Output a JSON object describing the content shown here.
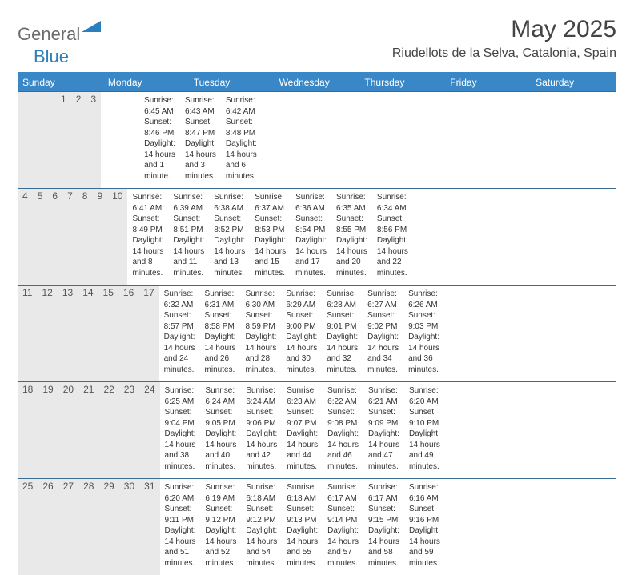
{
  "logo": {
    "text_general": "General",
    "text_blue": "Blue"
  },
  "title": "May 2025",
  "location": "Riudellots de la Selva, Catalonia, Spain",
  "colors": {
    "header_bg": "#3a87c7",
    "header_text": "#ffffff",
    "daynum_bg": "#e9e9e9",
    "border": "#3a6b93",
    "text": "#333333",
    "logo_gray": "#6b6b6b",
    "logo_blue": "#2b7fbd"
  },
  "day_labels": [
    "Sunday",
    "Monday",
    "Tuesday",
    "Wednesday",
    "Thursday",
    "Friday",
    "Saturday"
  ],
  "weeks": [
    [
      {
        "num": "",
        "info": ""
      },
      {
        "num": "",
        "info": ""
      },
      {
        "num": "",
        "info": ""
      },
      {
        "num": "",
        "info": ""
      },
      {
        "num": "1",
        "info": "Sunrise: 6:45 AM\nSunset: 8:46 PM\nDaylight: 14 hours and 1 minute."
      },
      {
        "num": "2",
        "info": "Sunrise: 6:43 AM\nSunset: 8:47 PM\nDaylight: 14 hours and 3 minutes."
      },
      {
        "num": "3",
        "info": "Sunrise: 6:42 AM\nSunset: 8:48 PM\nDaylight: 14 hours and 6 minutes."
      }
    ],
    [
      {
        "num": "4",
        "info": "Sunrise: 6:41 AM\nSunset: 8:49 PM\nDaylight: 14 hours and 8 minutes."
      },
      {
        "num": "5",
        "info": "Sunrise: 6:39 AM\nSunset: 8:51 PM\nDaylight: 14 hours and 11 minutes."
      },
      {
        "num": "6",
        "info": "Sunrise: 6:38 AM\nSunset: 8:52 PM\nDaylight: 14 hours and 13 minutes."
      },
      {
        "num": "7",
        "info": "Sunrise: 6:37 AM\nSunset: 8:53 PM\nDaylight: 14 hours and 15 minutes."
      },
      {
        "num": "8",
        "info": "Sunrise: 6:36 AM\nSunset: 8:54 PM\nDaylight: 14 hours and 17 minutes."
      },
      {
        "num": "9",
        "info": "Sunrise: 6:35 AM\nSunset: 8:55 PM\nDaylight: 14 hours and 20 minutes."
      },
      {
        "num": "10",
        "info": "Sunrise: 6:34 AM\nSunset: 8:56 PM\nDaylight: 14 hours and 22 minutes."
      }
    ],
    [
      {
        "num": "11",
        "info": "Sunrise: 6:32 AM\nSunset: 8:57 PM\nDaylight: 14 hours and 24 minutes."
      },
      {
        "num": "12",
        "info": "Sunrise: 6:31 AM\nSunset: 8:58 PM\nDaylight: 14 hours and 26 minutes."
      },
      {
        "num": "13",
        "info": "Sunrise: 6:30 AM\nSunset: 8:59 PM\nDaylight: 14 hours and 28 minutes."
      },
      {
        "num": "14",
        "info": "Sunrise: 6:29 AM\nSunset: 9:00 PM\nDaylight: 14 hours and 30 minutes."
      },
      {
        "num": "15",
        "info": "Sunrise: 6:28 AM\nSunset: 9:01 PM\nDaylight: 14 hours and 32 minutes."
      },
      {
        "num": "16",
        "info": "Sunrise: 6:27 AM\nSunset: 9:02 PM\nDaylight: 14 hours and 34 minutes."
      },
      {
        "num": "17",
        "info": "Sunrise: 6:26 AM\nSunset: 9:03 PM\nDaylight: 14 hours and 36 minutes."
      }
    ],
    [
      {
        "num": "18",
        "info": "Sunrise: 6:25 AM\nSunset: 9:04 PM\nDaylight: 14 hours and 38 minutes."
      },
      {
        "num": "19",
        "info": "Sunrise: 6:24 AM\nSunset: 9:05 PM\nDaylight: 14 hours and 40 minutes."
      },
      {
        "num": "20",
        "info": "Sunrise: 6:24 AM\nSunset: 9:06 PM\nDaylight: 14 hours and 42 minutes."
      },
      {
        "num": "21",
        "info": "Sunrise: 6:23 AM\nSunset: 9:07 PM\nDaylight: 14 hours and 44 minutes."
      },
      {
        "num": "22",
        "info": "Sunrise: 6:22 AM\nSunset: 9:08 PM\nDaylight: 14 hours and 46 minutes."
      },
      {
        "num": "23",
        "info": "Sunrise: 6:21 AM\nSunset: 9:09 PM\nDaylight: 14 hours and 47 minutes."
      },
      {
        "num": "24",
        "info": "Sunrise: 6:20 AM\nSunset: 9:10 PM\nDaylight: 14 hours and 49 minutes."
      }
    ],
    [
      {
        "num": "25",
        "info": "Sunrise: 6:20 AM\nSunset: 9:11 PM\nDaylight: 14 hours and 51 minutes."
      },
      {
        "num": "26",
        "info": "Sunrise: 6:19 AM\nSunset: 9:12 PM\nDaylight: 14 hours and 52 minutes."
      },
      {
        "num": "27",
        "info": "Sunrise: 6:18 AM\nSunset: 9:12 PM\nDaylight: 14 hours and 54 minutes."
      },
      {
        "num": "28",
        "info": "Sunrise: 6:18 AM\nSunset: 9:13 PM\nDaylight: 14 hours and 55 minutes."
      },
      {
        "num": "29",
        "info": "Sunrise: 6:17 AM\nSunset: 9:14 PM\nDaylight: 14 hours and 57 minutes."
      },
      {
        "num": "30",
        "info": "Sunrise: 6:17 AM\nSunset: 9:15 PM\nDaylight: 14 hours and 58 minutes."
      },
      {
        "num": "31",
        "info": "Sunrise: 6:16 AM\nSunset: 9:16 PM\nDaylight: 14 hours and 59 minutes."
      }
    ]
  ]
}
